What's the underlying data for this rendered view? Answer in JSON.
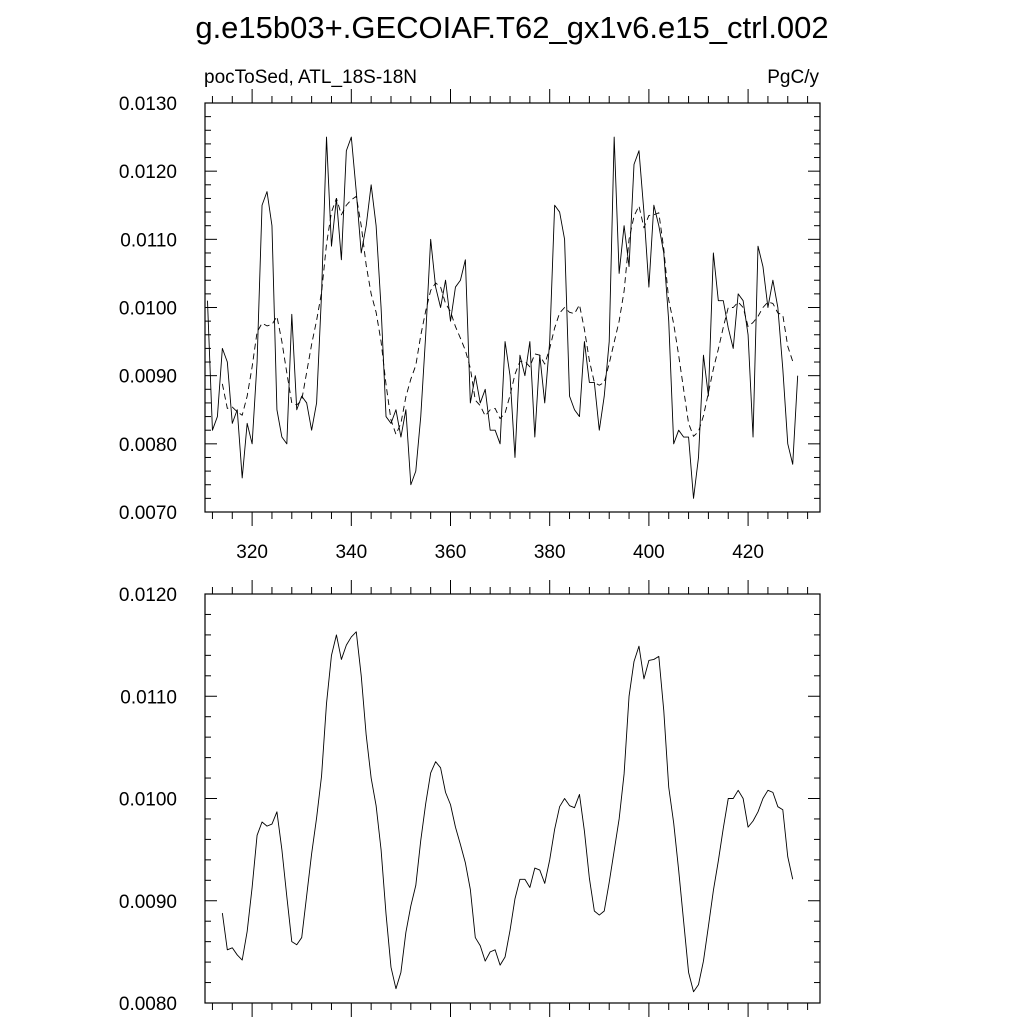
{
  "title": "g.e15b03+.GECOIAF.T62_gx1v6.e15_ctrl.002",
  "chart_data": [
    {
      "type": "line",
      "left_label": "pocToSed, ATL_18S-18N",
      "right_label": "PgC/y",
      "xlim": [
        310.5,
        434.5
      ],
      "ylim": [
        0.007,
        0.013
      ],
      "x_ticks": [
        320,
        340,
        360,
        380,
        400,
        420
      ],
      "y_ticks": [
        "0.0070",
        "0.0080",
        "0.0090",
        "0.0100",
        "0.0110",
        "0.0120",
        "0.0130"
      ],
      "x_start": 311,
      "x_step": 1,
      "series": [
        {
          "style": "solid",
          "values": [
            0.0101,
            0.0082,
            0.0084,
            0.0094,
            0.0092,
            0.0083,
            0.0085,
            0.0075,
            0.0083,
            0.008,
            0.0092,
            0.0115,
            0.0117,
            0.0112,
            0.0085,
            0.0081,
            0.008,
            0.0099,
            0.0085,
            0.0087,
            0.0086,
            0.0082,
            0.0086,
            0.0102,
            0.0125,
            0.0109,
            0.0116,
            0.0107,
            0.0123,
            0.0125,
            0.0117,
            0.0108,
            0.0112,
            0.0118,
            0.0112,
            0.01,
            0.0084,
            0.0083,
            0.0085,
            0.0081,
            0.0085,
            0.0074,
            0.0076,
            0.0084,
            0.0096,
            0.011,
            0.0103,
            0.01,
            0.0104,
            0.0098,
            0.0103,
            0.0104,
            0.0107,
            0.0086,
            0.009,
            0.0086,
            0.0088,
            0.0082,
            0.0082,
            0.008,
            0.0095,
            0.009,
            0.0078,
            0.0093,
            0.009,
            0.0095,
            0.0081,
            0.0093,
            0.0086,
            0.0095,
            0.0115,
            0.0114,
            0.011,
            0.0087,
            0.0085,
            0.0084,
            0.0095,
            0.0089,
            0.0089,
            0.0082,
            0.0087,
            0.0095,
            0.0125,
            0.0105,
            0.0112,
            0.0106,
            0.0121,
            0.0123,
            0.0114,
            0.0103,
            0.0115,
            0.0112,
            0.0108,
            0.0098,
            0.008,
            0.0082,
            0.0081,
            0.0081,
            0.0072,
            0.0078,
            0.0093,
            0.0087,
            0.0108,
            0.0101,
            0.0101,
            0.0097,
            0.0094,
            0.0102,
            0.0101,
            0.0096,
            0.0081,
            0.0109,
            0.0106,
            0.01,
            0.0104,
            0.01,
            0.0091,
            0.008,
            0.0077,
            0.009
          ]
        },
        {
          "style": "dashed",
          "start_index": 3,
          "values": [
            0.00888,
            0.00852,
            0.00854,
            0.00847,
            0.00842,
            0.0087,
            0.00913,
            0.00964,
            0.00977,
            0.00973,
            0.00975,
            0.00987,
            0.0095,
            0.00904,
            0.0086,
            0.00857,
            0.00864,
            0.00905,
            0.00946,
            0.00981,
            0.01022,
            0.01093,
            0.0114,
            0.0116,
            0.01136,
            0.0115,
            0.01158,
            0.01163,
            0.0112,
            0.01062,
            0.0102,
            0.00993,
            0.0095,
            0.00887,
            0.00835,
            0.00814,
            0.0083,
            0.00869,
            0.00895,
            0.00915,
            0.00959,
            0.00995,
            0.01025,
            0.01036,
            0.0103,
            0.01006,
            0.00994,
            0.00972,
            0.00955,
            0.00937,
            0.00911,
            0.00864,
            0.00856,
            0.00841,
            0.0085,
            0.00852,
            0.00837,
            0.00845,
            0.00871,
            0.00902,
            0.00921,
            0.00921,
            0.00913,
            0.00932,
            0.0093,
            0.00917,
            0.0094,
            0.0097,
            0.00992,
            0.01,
            0.00993,
            0.00991,
            0.01004,
            0.00968,
            0.00922,
            0.0089,
            0.00886,
            0.0089,
            0.00918,
            0.00949,
            0.0098,
            0.01024,
            0.011,
            0.01134,
            0.01149,
            0.01117,
            0.01135,
            0.01136,
            0.01139,
            0.01086,
            0.01011,
            0.00976,
            0.0093,
            0.0088,
            0.0083,
            0.00811,
            0.00818,
            0.00841,
            0.00875,
            0.0091,
            0.00939,
            0.00971,
            0.01,
            0.01,
            0.01008,
            0.01,
            0.00972,
            0.00978,
            0.00987,
            0.01,
            0.01008,
            0.01006,
            0.00992,
            0.00989,
            0.00943,
            0.00921
          ]
        }
      ]
    },
    {
      "type": "line",
      "xlim": [
        310.5,
        434.5
      ],
      "ylim": [
        0.008,
        0.012
      ],
      "x_ticks": [
        320,
        340,
        360,
        380,
        400,
        420
      ],
      "y_ticks": [
        "0.0080",
        "0.0090",
        "0.0100",
        "0.0110",
        "0.0120"
      ],
      "x_start": 314,
      "x_step": 1,
      "series": [
        {
          "style": "solid",
          "values": [
            0.00888,
            0.00852,
            0.00854,
            0.00847,
            0.00842,
            0.0087,
            0.00913,
            0.00964,
            0.00977,
            0.00973,
            0.00975,
            0.00987,
            0.0095,
            0.00904,
            0.0086,
            0.00857,
            0.00864,
            0.00905,
            0.00946,
            0.00981,
            0.01022,
            0.01093,
            0.0114,
            0.0116,
            0.01136,
            0.0115,
            0.01158,
            0.01163,
            0.0112,
            0.01062,
            0.0102,
            0.00993,
            0.0095,
            0.00887,
            0.00835,
            0.00814,
            0.0083,
            0.00869,
            0.00895,
            0.00915,
            0.00959,
            0.00995,
            0.01025,
            0.01036,
            0.0103,
            0.01006,
            0.00994,
            0.00972,
            0.00955,
            0.00937,
            0.00911,
            0.00864,
            0.00856,
            0.00841,
            0.0085,
            0.00852,
            0.00837,
            0.00845,
            0.00871,
            0.00902,
            0.00921,
            0.00921,
            0.00913,
            0.00932,
            0.0093,
            0.00917,
            0.0094,
            0.0097,
            0.00992,
            0.01,
            0.00993,
            0.00991,
            0.01004,
            0.00968,
            0.00922,
            0.0089,
            0.00886,
            0.0089,
            0.00918,
            0.00949,
            0.0098,
            0.01024,
            0.011,
            0.01134,
            0.01149,
            0.01117,
            0.01135,
            0.01136,
            0.01139,
            0.01086,
            0.01011,
            0.00976,
            0.0093,
            0.0088,
            0.0083,
            0.00811,
            0.00818,
            0.00841,
            0.00875,
            0.0091,
            0.00939,
            0.00971,
            0.01,
            0.01,
            0.01008,
            0.01,
            0.00972,
            0.00978,
            0.00987,
            0.01,
            0.01008,
            0.01006,
            0.00992,
            0.00989,
            0.00943,
            0.00921
          ]
        }
      ]
    }
  ]
}
